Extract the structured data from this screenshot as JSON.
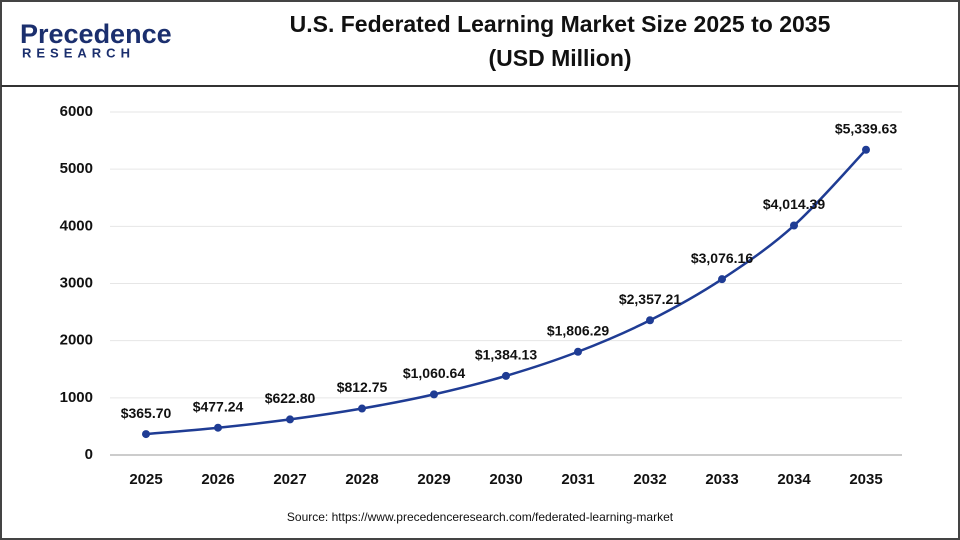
{
  "logo": {
    "name": "Precedence",
    "tagline": "RESEARCH"
  },
  "chart_data": {
    "type": "line",
    "title": "U.S. Federated Learning Market Size 2025 to 2035",
    "subtitle": "(USD Million)",
    "categories": [
      "2025",
      "2026",
      "2027",
      "2028",
      "2029",
      "2030",
      "2031",
      "2032",
      "2033",
      "2034",
      "2035"
    ],
    "values": [
      365.7,
      477.24,
      622.8,
      812.75,
      1060.64,
      1384.13,
      1806.29,
      2357.21,
      3076.16,
      4014.39,
      5339.63
    ],
    "value_labels": [
      "$365.70",
      "$477.24",
      "$622.80",
      "$812.75",
      "$1,060.64",
      "$1,384.13",
      "$1,806.29",
      "$2,357.21",
      "$3,076.16",
      "$4,014.39",
      "$5,339.63"
    ],
    "color": "#1f3c94",
    "ylim": [
      0,
      6000
    ],
    "yticks": [
      0,
      1000,
      2000,
      3000,
      4000,
      5000,
      6000
    ],
    "grid": true,
    "source": "Source: https://www.precedenceresearch.com/federated-learning-market"
  }
}
